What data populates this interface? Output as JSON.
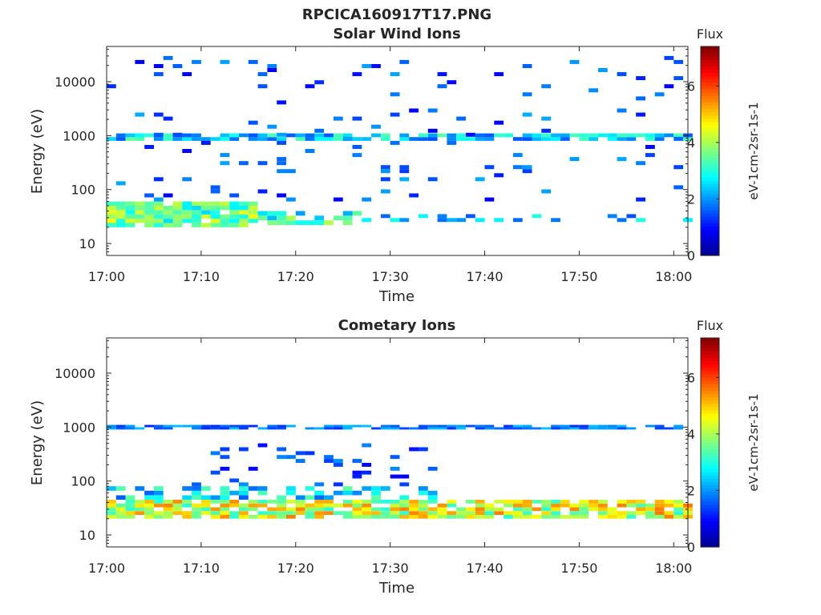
{
  "figure": {
    "title": "RPCICA160917T17.PNG"
  },
  "colormap": [
    "#00008f",
    "#0000ff",
    "#007fff",
    "#00ffff",
    "#7fff7f",
    "#ffff00",
    "#ff7f00",
    "#ff0000",
    "#7f0000"
  ],
  "chart_data": [
    {
      "type": "heatmap",
      "title": "Solar Wind Ions",
      "xlabel": "Time",
      "ylabel": "Energy (eV)",
      "x_ticks": [
        "17:00",
        "17:10",
        "17:20",
        "17:30",
        "17:40",
        "17:50",
        "18:00"
      ],
      "xlim_minutes": [
        0,
        61.5
      ],
      "y_scale": "log",
      "y_ticks": [
        "10",
        "100",
        "1000",
        "10000"
      ],
      "ylim": [
        6,
        45000
      ],
      "colorbar": {
        "label": "Flux",
        "unit": "eV-1cm-2sr-1s-1",
        "range": [
          0,
          7.4
        ],
        "ticks": [
          "0",
          "2",
          "4",
          "6"
        ]
      },
      "bands": [
        {
          "name": "low-energy",
          "energy_range": [
            20,
            60
          ],
          "time_range": [
            0,
            16
          ],
          "value_range": [
            2.5,
            4.6
          ],
          "density": 0.95
        },
        {
          "name": "low-energy",
          "energy_range": [
            22,
            40
          ],
          "time_range": [
            16,
            27
          ],
          "value_range": [
            2.0,
            4.2
          ],
          "density": 0.7
        },
        {
          "name": "low-energy",
          "energy_range": [
            25,
            35
          ],
          "time_range": [
            27,
            61.5
          ],
          "value_range": [
            1.5,
            3.0
          ],
          "density": 0.35
        },
        {
          "name": "proton-peak",
          "energy_range": [
            800,
            1100
          ],
          "time_range": [
            0,
            61.5
          ],
          "value_range": [
            1.5,
            3.5
          ],
          "density": 0.8
        },
        {
          "name": "sparse",
          "energy_range": [
            60,
            30000
          ],
          "time_range": [
            0,
            61.5
          ],
          "value_range": [
            0.8,
            2.2
          ],
          "density": 0.05
        }
      ]
    },
    {
      "type": "heatmap",
      "title": "Cometary Ions",
      "xlabel": "Time",
      "ylabel": "Energy (eV)",
      "x_ticks": [
        "17:00",
        "17:10",
        "17:20",
        "17:30",
        "17:40",
        "17:50",
        "18:00"
      ],
      "xlim_minutes": [
        0,
        61.5
      ],
      "y_scale": "log",
      "y_ticks": [
        "10",
        "100",
        "1000",
        "10000"
      ],
      "ylim": [
        6,
        45000
      ],
      "colorbar": {
        "label": "Flux",
        "unit": "eV-1cm-2sr-1s-1",
        "range": [
          0,
          7.4
        ],
        "ticks": [
          "0",
          "2",
          "4",
          "6"
        ]
      },
      "bands": [
        {
          "name": "low-energy",
          "energy_range": [
            20,
            45
          ],
          "time_range": [
            0,
            61.5
          ],
          "value_range": [
            3.0,
            5.6
          ],
          "density": 0.85
        },
        {
          "name": "mid-energy",
          "energy_range": [
            45,
            80
          ],
          "time_range": [
            0,
            35
          ],
          "value_range": [
            1.5,
            3.5
          ],
          "density": 0.5
        },
        {
          "name": "sparse-mid",
          "energy_range": [
            80,
            500
          ],
          "time_range": [
            8,
            35
          ],
          "value_range": [
            0.9,
            2.0
          ],
          "density": 0.12
        },
        {
          "name": "proton-peak",
          "energy_range": [
            900,
            1100
          ],
          "time_range": [
            0,
            61.5
          ],
          "value_range": [
            1.2,
            2.4
          ],
          "density": 0.75
        }
      ]
    }
  ]
}
